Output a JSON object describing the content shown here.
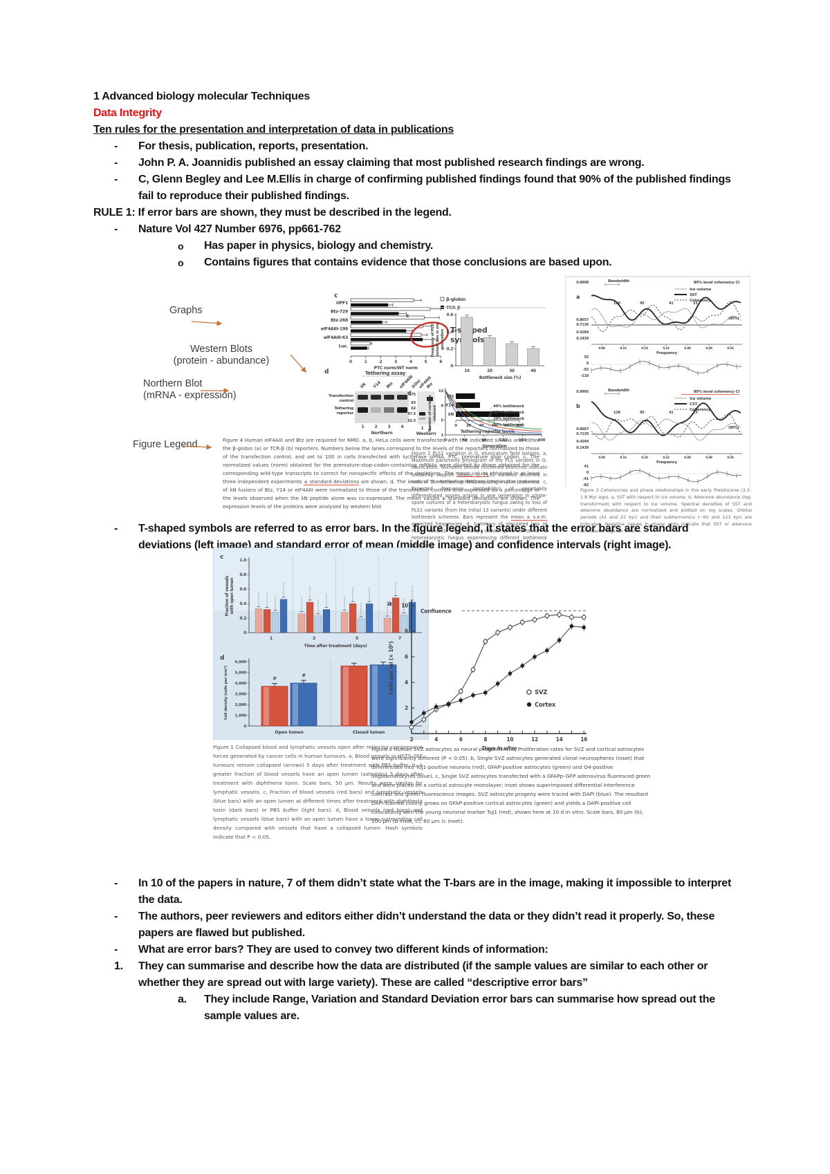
{
  "page": {
    "title": "1 Advanced biology molecular Techniques",
    "subtitle": "Data Integrity",
    "heading": "Ten rules for the presentation and interpretation of data in publications",
    "markers": {
      "dash": "-",
      "circle": "o",
      "one": "1.",
      "a": "a."
    },
    "bullets_top": [
      "For thesis, publication, reports, presentation.",
      "John P. A. Joannidis published an essay claiming that most published research findings are wrong.",
      "C, Glenn Begley and Lee M.Ellis in charge of confirming published findings found that 90% of the published findings fail to reproduce their published findings."
    ],
    "rule1": "RULE 1: If error bars are shown, they must be described in the legend.",
    "nature_ref": "Nature Vol 427 Number 6976, pp661-762",
    "sub_bullets": [
      "Has paper in physics, biology and chemistry.",
      "Contains figures that contains evidence that those conclusions are based upon."
    ],
    "tshaped": "T-shaped symbols are referred to as error bars. In the figure legend, it states that the error bars are standard deviations (left image) and standard error of mean (middle image) and confidence intervals (right image).",
    "bullets_bottom": [
      "In 10 of the papers in nature, 7 of them didn’t state what the T-bars are in the image, making it impossible to interpret the data.",
      "The authors, peer reviewers and editors either didn’t understand the data or they didn’t read it properly. So, these papers are flawed but published.",
      "What are error bars? They are used to convey two different kinds of information:"
    ],
    "numbered_1": "They can summarise and describe how the data are distributed (if the sample values are similar to each other or whether they are spread out with large variety). These are called “descriptive error bars”",
    "lettered_a": "They include Range, Variation and Standard Deviation error bars can summarise how spread out the sample values are."
  },
  "annotations": {
    "graphs": "Graphs",
    "western1": "Western Blots",
    "western2": "(protein - abundance)",
    "northern1": "Northern Blot",
    "northern2": "(mRNA - expression)",
    "figlegend": "Figure Legend",
    "arrow_color": "#c87137"
  },
  "figures": {
    "fig4": {
      "panel_c": {
        "letter": "c",
        "categories": [
          "UPF1",
          "Btz-729",
          "Btz-268",
          "eIF4AIII-199",
          "eIF4AIII-63",
          "Luc."
        ],
        "series": [
          {
            "name": "β-globin",
            "fill": "#ffffff",
            "values": [
              4.2,
              5.3,
              4.9,
              4.8,
              4.7,
              1.3
            ],
            "err": [
              0.5,
              0.7,
              1.0,
              0.6,
              0.4,
              0.1
            ]
          },
          {
            "name": "TCR-β",
            "fill": "#111111",
            "values": [
              2.5,
              3.2,
              2.1,
              3.7,
              4.8,
              1.1
            ],
            "err": [
              0.3,
              0.5,
              0.3,
              0.4,
              1.0,
              0.1
            ]
          }
        ],
        "xticks": [
          0,
          1,
          2,
          3,
          4,
          5,
          6
        ],
        "xlabel": "PTC norm/WT norm"
      },
      "callout": {
        "text_line1": "T-shaped",
        "text_line2": "symbols",
        "color": "#d42b20"
      },
      "panel_d": {
        "letter": "d",
        "title": "Tethering assay",
        "lanes": [
          "λN",
          "Y14",
          "Btz",
          "eIF4AIII"
        ],
        "row1a": "Transfection",
        "row1b": "control",
        "row2a": "Tethering",
        "row2b": "reporter",
        "lane_numbers": [
          "1",
          "2",
          "3",
          "4"
        ],
        "northern": "Northern",
        "western": "Western",
        "kda": "(kDa)",
        "mw": [
          "175",
          "83",
          "62",
          "47.5",
          "32.5"
        ],
        "west_lanes": [
          "eIF4AIII",
          "Btz"
        ],
        "west_numbers": [
          "1",
          "2"
        ],
        "bars": {
          "labels": [
            "Btz",
            "Y14",
            "λN"
          ],
          "values": [
            30,
            38,
            100
          ],
          "xticks": [
            0,
            20,
            40,
            60,
            80,
            100
          ],
          "xlabel": "Tethering-reporter levels"
        }
      },
      "legend": {
        "pre": "Figure 4 Human eIF4AIII and Btz are required for NMD. a, b, HeLa cells were transfected with the indicated siRNAs and either the β-globin (a) or TCR-β (b) reporters. Numbers below the lanes correspond to the levels of the reporters normalized to those of the transfection control, and set to 100 in cells transfected with luciferase siRNA. PTC, premature stop codon. c, The normalized values (norm) obtained for the premature-stop-codon-containing mRNAs were divided by those obtained for the corresponding wild-type transcripts to correct for nonspecific effects of the depletions. The ",
        "u1": "mean values",
        "mid": " obtained in at least three independent experiments ",
        "u2": "± standard deviations",
        "post": " are shown. d, The levels of the tethering-NMD reporter in the presence of λN fusions of Btz, Y14 or eIF4AIII were normalized to those of the transfection controls and expressed as a percentage of the levels observed when the λN peptide alone was co-expressed. The mean values ± standard deviations are shown. The expression levels of the proteins were analysed by western blot"
      }
    },
    "fig2": {
      "panel_c": {
        "letter": "c",
        "ylabel_lines": [
          "Frequency of PLS1",
          "variant loss in one",
          "generation"
        ],
        "yticks": [
          "0",
          "0.2",
          "0.4",
          "0.6"
        ],
        "categories": [
          "10",
          "20",
          "30",
          "40"
        ],
        "values": [
          0.57,
          0.33,
          0.26,
          0.2
        ],
        "xlabel": "Bottleneck size (%)"
      },
      "panel_d": {
        "letter": "d",
        "ylabel_lines": [
          "Number of variants",
          "retained"
        ],
        "yticks": [
          "13",
          "9",
          "5",
          "1"
        ],
        "xticks": [
          "0",
          "40",
          "80",
          "120",
          "160",
          "200"
        ],
        "xlabel": "Generation",
        "lines": [
          {
            "label": "40% bottleneck",
            "color": "#3aa05a",
            "end": 2.1,
            "k": 0.016
          },
          {
            "label": "30% bottleneck",
            "color": "#d24a3a",
            "end": 1.75,
            "k": 0.019
          },
          {
            "label": "20% bottleneck",
            "color": "#4a68b8",
            "end": 1.4,
            "k": 0.023
          },
          {
            "label": "10% bottleneck",
            "color": "#555555",
            "end": 1.1,
            "k": 0.03
          }
        ]
      },
      "legend": {
        "pre": "Figure 2 PLS1 variation in G. etunicatum field isolates. a, Maximum parsimony phylogram of the PLS variants in G. etunicatum. Numbers beside thickened branches indicate bootstrap support values. b, PLS1 variants detected in natural G. etunicatum isolates (single-spore cultures). c, Expected frequency (probability) of genetically differentiated spores arising in one generation in single-spore cultures of a heterokaryotic fungus owing to loss of PLS1 variants (from the initial 13 variants) under different bottleneck schemes. Bars represent the ",
        "u": "mean ± s.e.m.",
        "post": " expected frequencies. d, Summary of simulated loss of PLS1 variants over many clonal generations in a heterokaryotic fungus experiencing different bottleneck pressures."
      }
    },
    "fig3p": {
      "panels": [
        {
          "letter": "a",
          "bandwidth": "Bandwidth",
          "ci": "80% level coherency CI",
          "ci_red": false,
          "legend": [
            "Ice volume",
            "SST",
            "Coherency"
          ],
          "ylabels": [
            "0.9908",
            "0.8657",
            "0.7136",
            "0.4284",
            "0.1439"
          ],
          "periods": [
            "120",
            "95",
            "41",
            "23"
          ],
          "pct": "(80%)",
          "xlabel": "Frequency",
          "xticklabels": [
            "0.08",
            "0.16",
            "0.24",
            "0.32",
            "0.40",
            "0.48",
            "0.56"
          ],
          "phase_ylabels": [
            "55",
            "0",
            "-55",
            "-110"
          ]
        },
        {
          "letter": "b",
          "bandwidth": "Bandwidth",
          "ci": "80% level coherency CI",
          "ci_red": true,
          "legend": [
            "Ice volume",
            "C37",
            "Coherency"
          ],
          "ylabels": [
            "0.9995",
            "0.8667",
            "0.7139",
            "0.4294",
            "0.1439"
          ],
          "periods": [
            "128",
            "95",
            "41",
            "23"
          ],
          "pct": "(80%)",
          "xlabel": "Frequency",
          "xticklabels": [
            "0.08",
            "0.16",
            "0.24",
            "0.32",
            "0.40",
            "0.48",
            "0.56"
          ],
          "phase_ylabels": [
            "41",
            "0",
            "-41",
            "-82"
          ]
        }
      ],
      "legend": "Figure 3 Coherencies and phase relationships in the early Pleistocene (3.2–1.8 Myr ago). a, SST with respect to ice volume. b, Alkenone abundance (log-transformed) with respect to ice volume. Spectral densities of SST and alkenone abundance are normalized and plotted on log scales. Orbital periods (41 and 23 kyr) and their subharmonics (~60 and 123 kyr) are indicated. Negative values in phase plots indicate that SST or alkenone abundance lags ice volume."
    },
    "fig1": {
      "panel_c": {
        "letter": "c",
        "ylabel1": "Fraction of vessels",
        "ylabel2": "with open lumen",
        "yticks": [
          "0",
          "0.2",
          "0.4",
          "0.6",
          "0.8",
          "1.0"
        ],
        "xticks": [
          "1",
          "3",
          "5",
          "7"
        ],
        "xlabel": "Time after treatment (days)",
        "colors": [
          "#eba898",
          "#d5543e",
          "#b5d2e8",
          "#3d6db5"
        ],
        "groups": [
          [
            0.33,
            0.32,
            0.28,
            0.46
          ],
          [
            0.26,
            0.42,
            0.23,
            0.32
          ],
          [
            0.28,
            0.4,
            0.19,
            0.4
          ],
          [
            0.2,
            0.48,
            0.24,
            0.42
          ]
        ]
      },
      "panel_d": {
        "letter": "d",
        "ylabel": "Cell density (cells per mm²)",
        "yticks": [
          "0",
          "1,000",
          "2,000",
          "3,000",
          "4,000",
          "5,000",
          "6,000"
        ],
        "categories": [
          "Open lumen",
          "Closed lumen"
        ],
        "values": [
          [
            3700,
            4000
          ],
          [
            5600,
            5700
          ]
        ],
        "hash": "#"
      },
      "legend": "Figure 1 Collapsed blood and lymphatic vessels open after relieving compressive forces generated by cancer cells in human tumours. a, Blood vessels in HSTS-26T tumours remain collapsed (arrows) 5 days after treatment with PBS buffer. b, A greater fraction of blood vessels have an open lumen (asterisks) 5 days after treatment with diphtheria toxin. Scale bars, 50 µm. Results were similar for lymphatic vessels. c, Fraction of blood vessels (red bars) and lymphatic vessels (blue bars) with an open lumen at different times after treatment with diphtheria toxin (dark bars) or PBS buffer (light bars). d, Blood vessels (red bars) and lymphatic vessels (blue bars) with an open lumen have a lower surrounding cell density compared with vessels that have a collapsed lumen. Hash symbols indicate that P < 0.05."
    },
    "fig3svz": {
      "letter": "a",
      "ylabel": "Cells per ml (× 10⁵)",
      "yticks": [
        2,
        4,
        6,
        8,
        10
      ],
      "xticks": [
        2,
        4,
        6,
        8,
        10,
        12,
        14,
        16
      ],
      "xlabel_pre": "Days ",
      "xlabel_it": "in vitro",
      "confluence": "Confluence",
      "conf_y": 9.6,
      "series": [
        {
          "name": "SVZ",
          "marker": "open",
          "points": [
            [
              2,
              0.5
            ],
            [
              3,
              1.1
            ],
            [
              4,
              1.9
            ],
            [
              5,
              2.3
            ],
            [
              6,
              3.3
            ],
            [
              7,
              5.0
            ],
            [
              8,
              7.2
            ],
            [
              9,
              7.9
            ],
            [
              10,
              8.3
            ],
            [
              11,
              8.7
            ],
            [
              12,
              8.9
            ],
            [
              13,
              9.2
            ],
            [
              14,
              9.3
            ],
            [
              15,
              9.1
            ],
            [
              16,
              9.1
            ]
          ]
        },
        {
          "name": "Cortex",
          "marker": "filled",
          "points": [
            [
              2,
              0.9
            ],
            [
              3,
              1.6
            ],
            [
              4,
              2.1
            ],
            [
              5,
              2.3
            ],
            [
              6,
              2.6
            ],
            [
              7,
              3.0
            ],
            [
              8,
              3.2
            ],
            [
              9,
              3.9
            ],
            [
              10,
              4.7
            ],
            [
              11,
              5.3
            ],
            [
              12,
              6.0
            ],
            [
              13,
              6.5
            ],
            [
              14,
              7.3
            ],
            [
              15,
              8.4
            ],
            [
              16,
              8.3
            ]
          ]
        }
      ],
      "legend_text": "Figure 3 Human SVZ astrocytes as neural progenitors. a, Proliferation rates for SVZ and cortical astrocytes were significantly different (P < 0.05). b, Single SVZ astrocytes generated clonal neurospheres (inset) that differentiate into TuJ1-positive neurons (red), GFAP-positive astrocytes (green) and O4-positive oligodendrocytes (blue). c, Single SVZ astrocytes transfected with a GFAPp–GFP adenovirus fluoresced green and were placed on a cortical astrocyte monolayer; inset shows superimposed differential interference contrast and green fluorescence images. SVZ astrocyte progeny were traced with DAPI (blue). The resultant DAPI-stained colony grows on GFAP-positive cortical astrocytes (green) and yields a DAPI-positive cell colocalizing with the young neuronal marker TuJ1 (red), shown here at 10 d in vitro. Scale bars, 80 µm (b); 100 µm (b inset, c); 60 µm (c inset)."
    }
  }
}
